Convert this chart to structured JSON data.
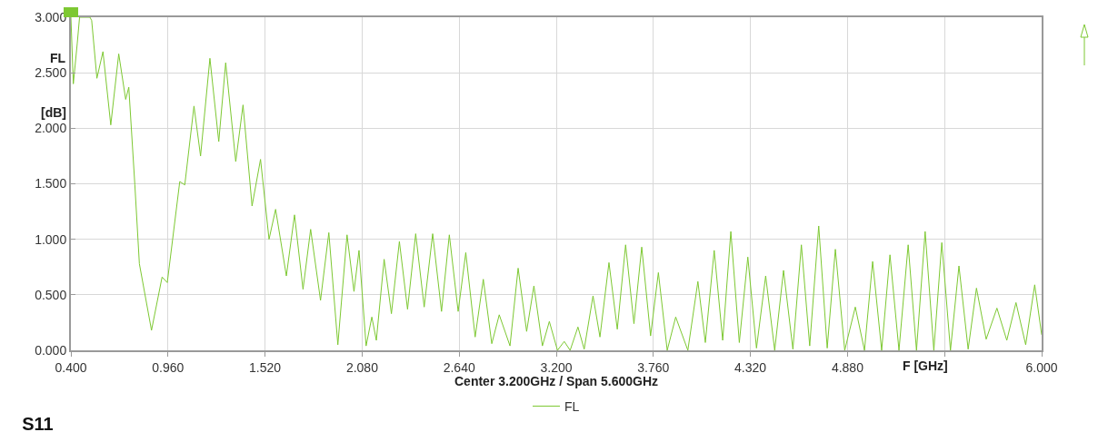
{
  "chart_data": {
    "type": "line",
    "title": "S11",
    "subtitle": "Center 3.200GHz / Span 5.600GHz",
    "xlabel": "F [GHz]",
    "ylabel": "FL [dB]",
    "xlim": [
      0.4,
      6.0
    ],
    "xticks": [
      {
        "value": 0.4,
        "label": "0.400"
      },
      {
        "value": 0.96,
        "label": "0.960"
      },
      {
        "value": 1.52,
        "label": "1.520"
      },
      {
        "value": 2.08,
        "label": "2.080"
      },
      {
        "value": 2.64,
        "label": "2.640"
      },
      {
        "value": 3.2,
        "label": "3.200"
      },
      {
        "value": 3.76,
        "label": "3.760"
      },
      {
        "value": 4.32,
        "label": "4.320"
      },
      {
        "value": 4.88,
        "label": "4.880"
      },
      {
        "value": 5.44,
        "label": null
      },
      {
        "value": 6.0,
        "label": "6.000"
      }
    ],
    "ylim": [
      0,
      3
    ],
    "yticks": [
      {
        "value": 0,
        "label": "0.000"
      },
      {
        "value": 0.5,
        "label": "0.500"
      },
      {
        "value": 1,
        "label": "1.000"
      },
      {
        "value": 1.5,
        "label": "1.500"
      },
      {
        "value": 2,
        "label": "2.000"
      },
      {
        "value": 2.5,
        "label": "2.500"
      },
      {
        "value": 3,
        "label": "3.000"
      }
    ],
    "grid": true,
    "legend": "bottom",
    "marker": "none",
    "line_style": "solid",
    "series": [
      {
        "name": "FL",
        "color": "#7dc832",
        "x": [
          0.4,
          0.414,
          0.437,
          0.45,
          0.51,
          0.52,
          0.55,
          0.585,
          0.63,
          0.676,
          0.716,
          0.734,
          0.769,
          0.795,
          0.865,
          0.926,
          0.956,
          1.028,
          1.057,
          1.11,
          1.148,
          1.202,
          1.253,
          1.293,
          1.351,
          1.393,
          1.445,
          1.494,
          1.543,
          1.581,
          1.643,
          1.69,
          1.739,
          1.783,
          1.84,
          1.888,
          1.94,
          1.993,
          2.033,
          2.062,
          2.103,
          2.136,
          2.162,
          2.207,
          2.249,
          2.295,
          2.342,
          2.389,
          2.438,
          2.487,
          2.538,
          2.583,
          2.634,
          2.678,
          2.732,
          2.779,
          2.828,
          2.871,
          2.933,
          2.98,
          3.029,
          3.071,
          3.12,
          3.16,
          3.207,
          3.246,
          3.28,
          3.325,
          3.361,
          3.412,
          3.452,
          3.504,
          3.552,
          3.6,
          3.648,
          3.693,
          3.744,
          3.789,
          3.84,
          3.889,
          3.959,
          4.017,
          4.06,
          4.111,
          4.16,
          4.207,
          4.256,
          4.305,
          4.355,
          4.408,
          4.46,
          4.511,
          4.565,
          4.614,
          4.662,
          4.714,
          4.763,
          4.81,
          4.864,
          4.925,
          4.978,
          5.025,
          5.077,
          5.125,
          5.177,
          5.23,
          5.278,
          5.328,
          5.378,
          5.424,
          5.474,
          5.523,
          5.576,
          5.624,
          5.68,
          5.742,
          5.799,
          5.852,
          5.908,
          5.96,
          6.0
        ],
        "values": [
          3.0,
          2.4,
          2.77,
          3.0,
          3.0,
          2.97,
          2.45,
          2.69,
          2.03,
          2.67,
          2.26,
          2.37,
          1.49,
          0.78,
          0.18,
          0.66,
          0.61,
          1.52,
          1.49,
          2.2,
          1.75,
          2.63,
          1.88,
          2.59,
          1.7,
          2.21,
          1.3,
          1.72,
          1.0,
          1.27,
          0.67,
          1.22,
          0.55,
          1.09,
          0.45,
          1.06,
          0.05,
          1.04,
          0.53,
          0.9,
          0.04,
          0.3,
          0.09,
          0.82,
          0.33,
          0.98,
          0.37,
          1.05,
          0.39,
          1.05,
          0.35,
          1.04,
          0.35,
          0.88,
          0.12,
          0.64,
          0.06,
          0.32,
          0.04,
          0.74,
          0.17,
          0.58,
          0.04,
          0.26,
          0.0,
          0.08,
          0.0,
          0.21,
          0.01,
          0.49,
          0.12,
          0.79,
          0.19,
          0.95,
          0.24,
          0.93,
          0.13,
          0.7,
          0.0,
          0.3,
          0.0,
          0.62,
          0.07,
          0.9,
          0.09,
          1.07,
          0.07,
          0.84,
          0.02,
          0.67,
          0.0,
          0.72,
          0.01,
          0.95,
          0.04,
          1.12,
          0.02,
          0.91,
          0.0,
          0.39,
          0.0,
          0.8,
          0.0,
          0.86,
          0.0,
          0.95,
          0.0,
          1.07,
          0.0,
          0.97,
          0.0,
          0.76,
          0.01,
          0.56,
          0.1,
          0.38,
          0.09,
          0.43,
          0.05,
          0.59,
          0.14
        ]
      }
    ]
  }
}
